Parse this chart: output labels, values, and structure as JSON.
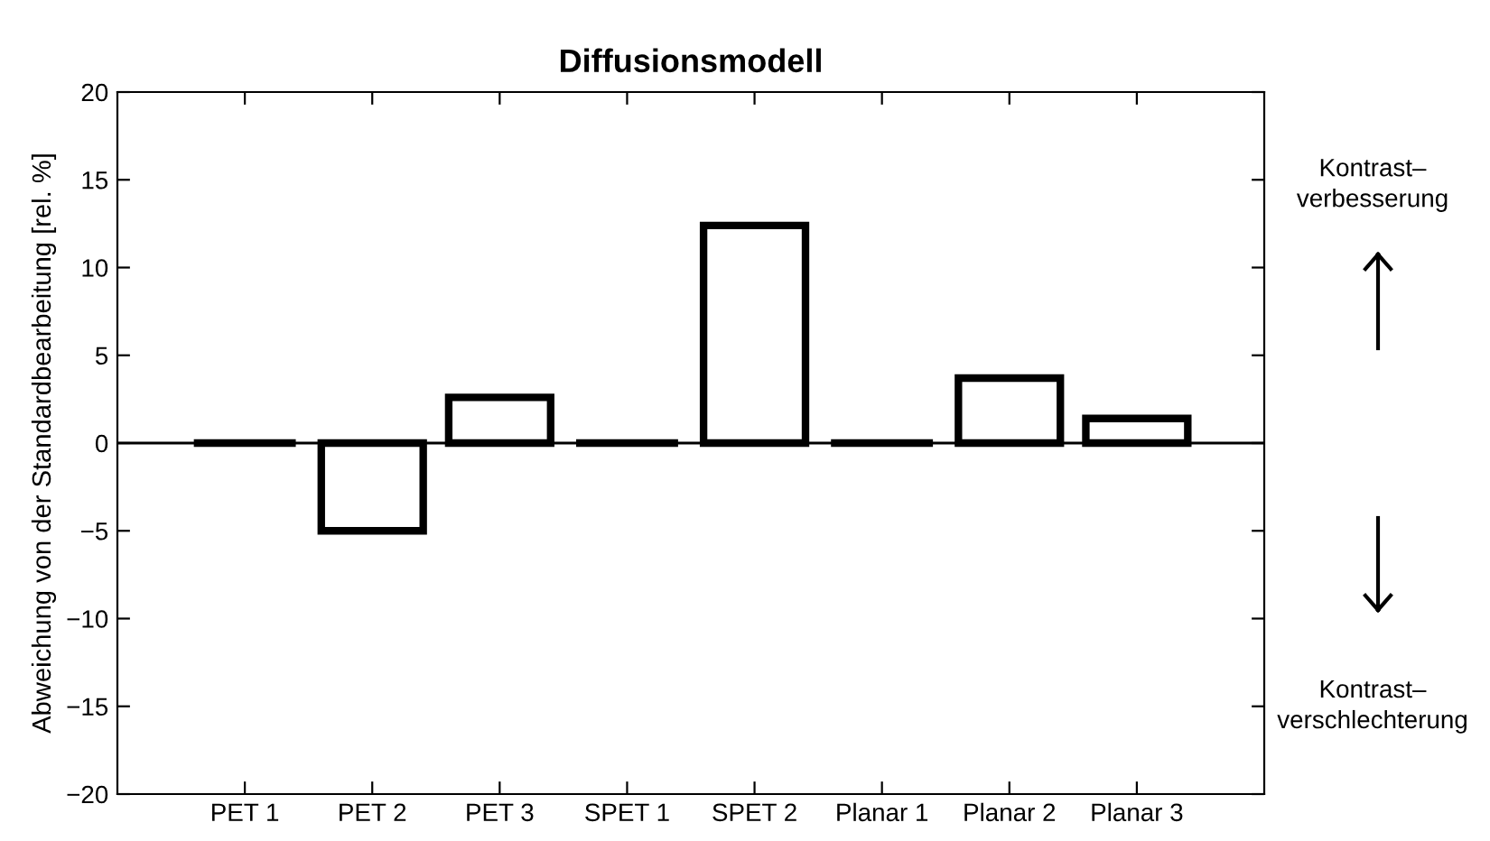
{
  "chart_data": {
    "type": "bar",
    "title": "Diffusionsmodell",
    "ylabel": "Abweichung von der Standardbearbeitung [rel. %]",
    "categories": [
      "PET 1",
      "PET 2",
      "PET 3",
      "SPET 1",
      "SPET 2",
      "Planar 1",
      "Planar 2",
      "Planar 3"
    ],
    "values": [
      0,
      -5,
      2.6,
      0,
      12.4,
      0,
      3.7,
      1.4
    ],
    "color": "#000000",
    "ylim": [
      -20,
      20
    ],
    "yticks": [
      -20,
      -15,
      -10,
      -5,
      0,
      5,
      10,
      15,
      20
    ],
    "ref_lines": [
      {
        "axis": "y",
        "value": 0,
        "color": "#000000"
      }
    ],
    "annotations": [
      "Kontrast–\nverbesserung",
      "Kontrast–\nverschlechterung"
    ],
    "grid": false,
    "legend": false
  }
}
